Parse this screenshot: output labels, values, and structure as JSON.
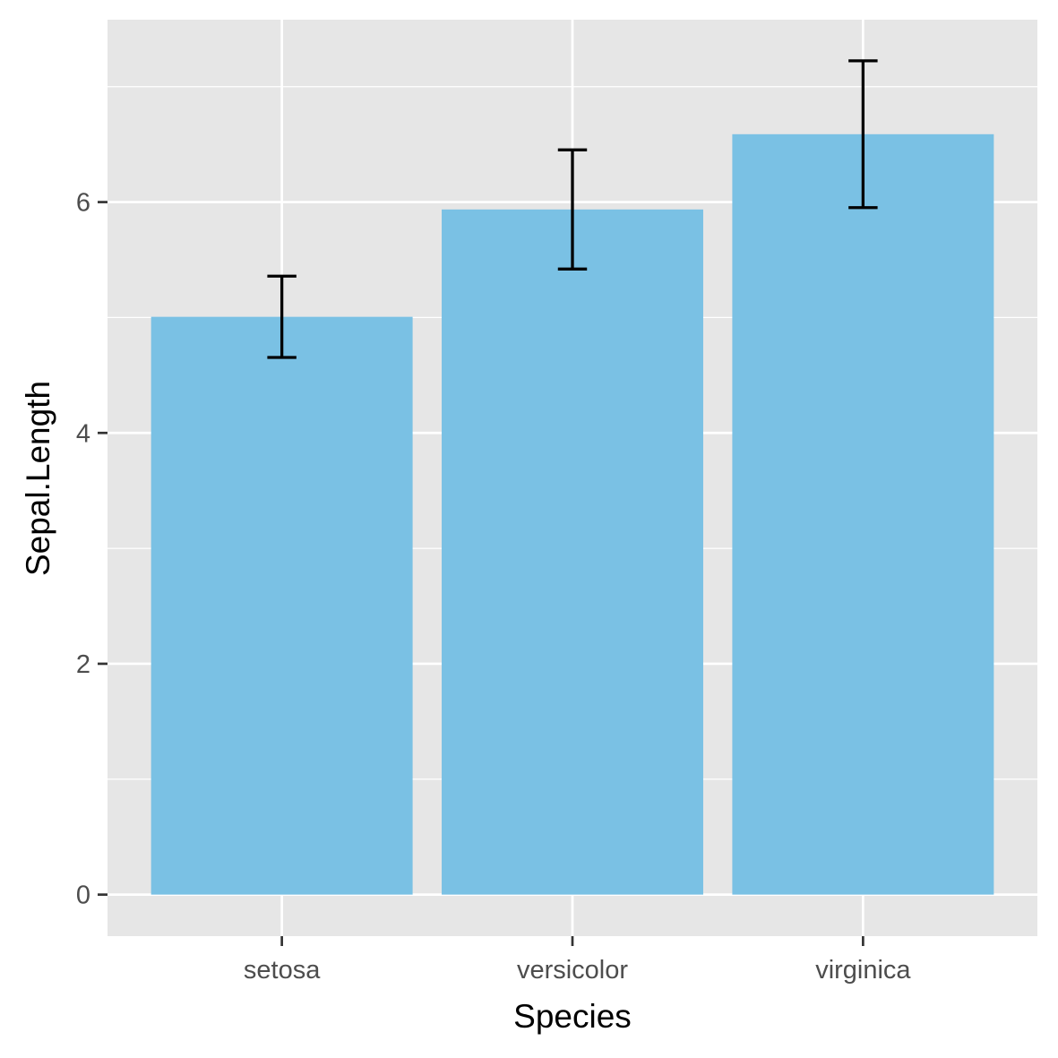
{
  "chart_data": {
    "type": "bar",
    "categories": [
      "setosa",
      "versicolor",
      "virginica"
    ],
    "values": [
      5.006,
      5.936,
      6.588
    ],
    "error_low": [
      4.654,
      5.42,
      5.952
    ],
    "error_high": [
      5.358,
      6.452,
      7.224
    ],
    "title": "",
    "xlabel": "Species",
    "ylabel": "Sepal.Length",
    "ylim": [
      -0.36,
      7.58
    ],
    "yticks": [
      0,
      2,
      4,
      6
    ],
    "ytick_labels": [
      "0",
      "2",
      "4",
      "6"
    ],
    "grid": true,
    "legend": "none",
    "colors": {
      "bar": "#7AC1E4",
      "panel": "#E6E6E6",
      "grid": "#FFFFFF",
      "errorbar": "#000000",
      "tick": "#333333"
    }
  }
}
